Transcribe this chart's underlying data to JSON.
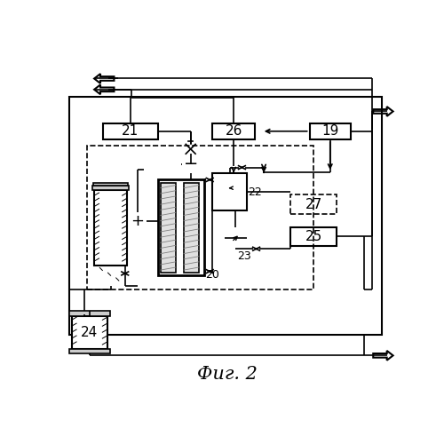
{
  "title": "Фиг. 2",
  "bg_color": "#ffffff",
  "line_color": "#000000",
  "figsize": [
    5.0,
    5.0
  ],
  "dpi": 100
}
